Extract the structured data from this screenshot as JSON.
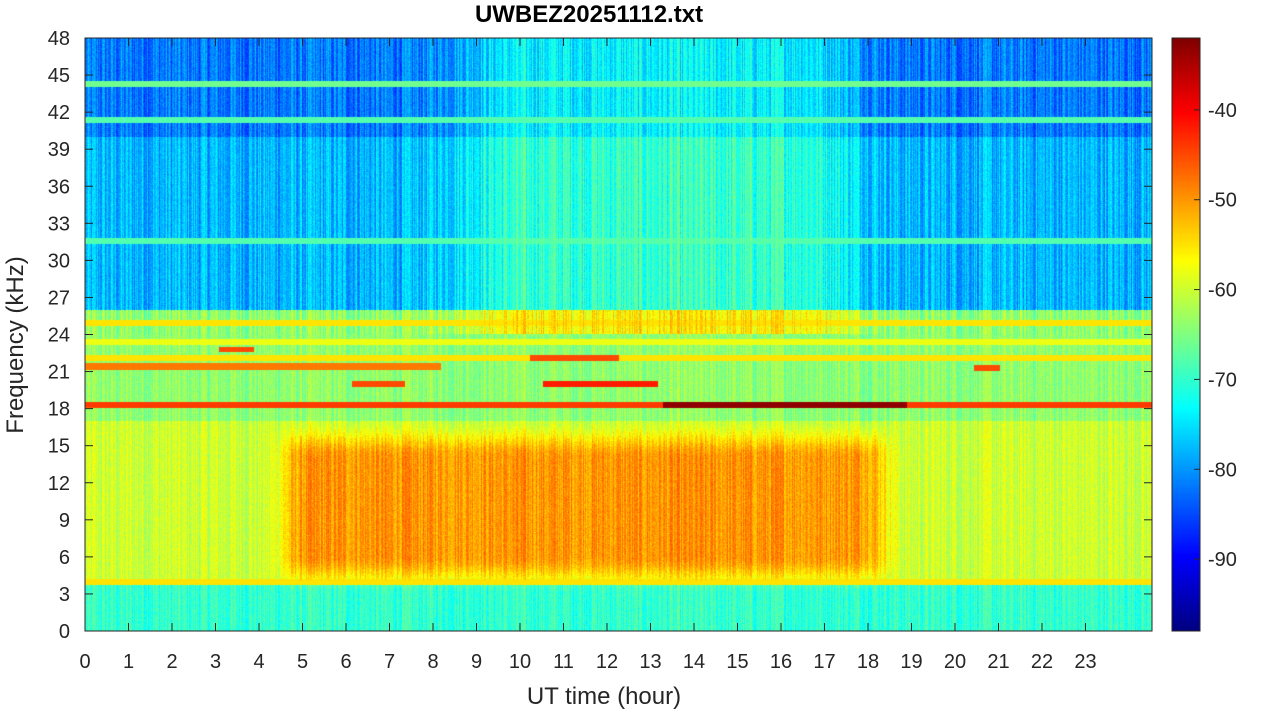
{
  "chart_data": {
    "type": "heatmap",
    "title": "UWBEZ20251112.txt",
    "xlabel": "UT time (hour)",
    "ylabel": "Frequency (kHz)",
    "xlim": [
      0,
      24
    ],
    "ylim": [
      0,
      48
    ],
    "x_ticks": [
      "0",
      "1",
      "2",
      "3",
      "4",
      "5",
      "6",
      "7",
      "8",
      "9",
      "10",
      "11",
      "12",
      "13",
      "14",
      "15",
      "16",
      "17",
      "18",
      "19",
      "20",
      "21",
      "22",
      "23"
    ],
    "y_ticks": [
      "0",
      "3",
      "6",
      "9",
      "12",
      "15",
      "18",
      "21",
      "24",
      "27",
      "30",
      "33",
      "36",
      "39",
      "42",
      "45",
      "48"
    ],
    "colormap": "jet",
    "colorbar": {
      "range": [
        -98,
        -32
      ],
      "ticks": [
        "-40",
        "-50",
        "-60",
        "-70",
        "-80",
        "-90"
      ]
    },
    "features": {
      "broadband_daytime_enhancement": {
        "x_range": [
          4.5,
          18.0
        ],
        "y_range": [
          4,
          16
        ],
        "level_db": -50
      },
      "lower_band_level_db": -60,
      "upper_band_level_db": -78,
      "persistent_lines_khz": [
        {
          "freq": 18.3,
          "level_db": -44,
          "strongest_x_range": [
            13,
            18.5
          ],
          "strongest_level_db": -33
        },
        {
          "freq": 21.4,
          "level_db": -48,
          "x_range": [
            0,
            8
          ]
        },
        {
          "freq": 24.9,
          "level_db": -55
        },
        {
          "freq": 23.4,
          "level_db": -58
        },
        {
          "freq": 22.1,
          "level_db": -55
        },
        {
          "freq": 3.9,
          "level_db": -55
        },
        {
          "freq": 44.3,
          "level_db": -66
        },
        {
          "freq": 41.4,
          "level_db": -68
        },
        {
          "freq": 31.6,
          "level_db": -68
        }
      ],
      "intermittent_segments": [
        {
          "freq": 20.0,
          "x_range": [
            10.3,
            12.9
          ],
          "level_db": -42
        },
        {
          "freq": 20.0,
          "x_range": [
            6.0,
            7.2
          ],
          "level_db": -45
        },
        {
          "freq": 22.1,
          "x_range": [
            10.0,
            12.0
          ],
          "level_db": -45
        },
        {
          "freq": 21.3,
          "x_range": [
            20.0,
            20.6
          ],
          "level_db": -45
        },
        {
          "freq": 22.8,
          "x_range": [
            3.0,
            3.8
          ],
          "level_db": -45
        }
      ]
    }
  }
}
